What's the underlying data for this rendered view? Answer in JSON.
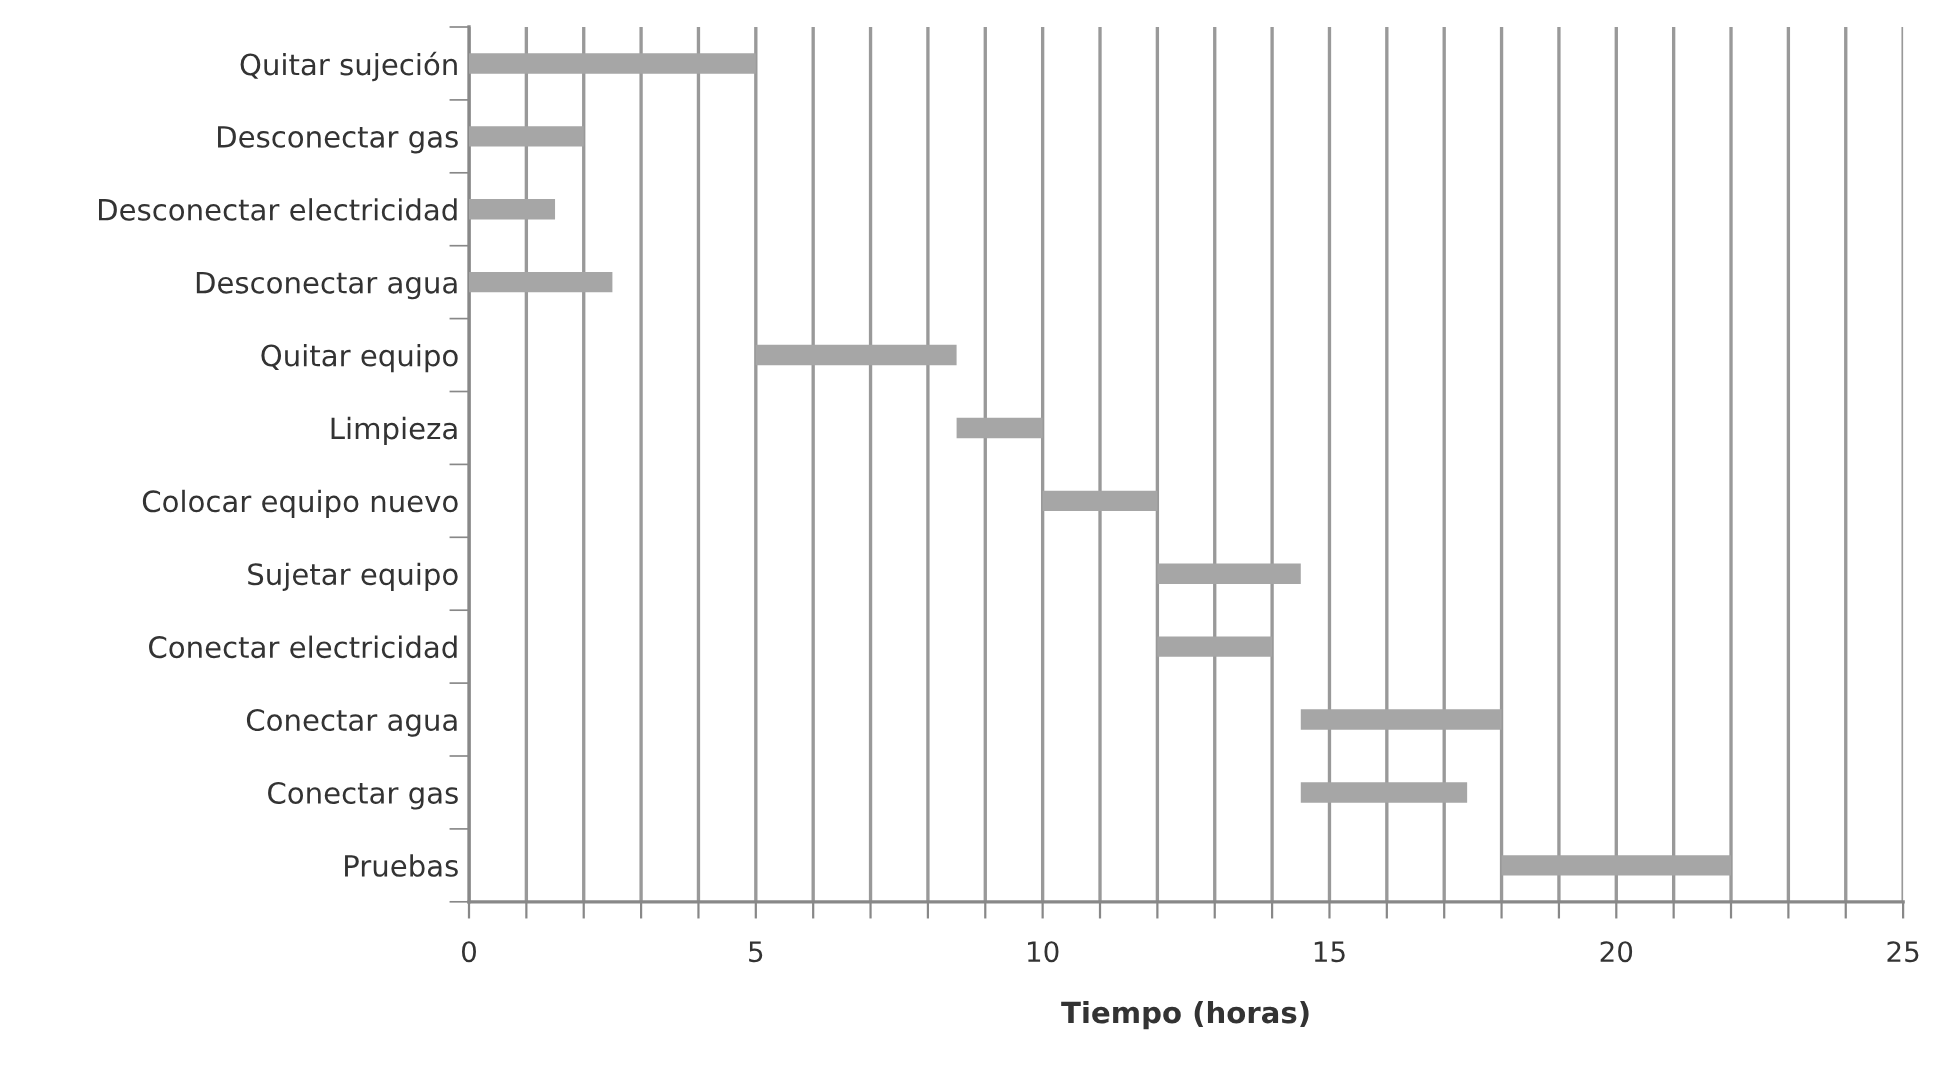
{
  "chart_data": {
    "type": "bar",
    "orientation": "horizontal",
    "xlabel": "Tiempo (horas)",
    "categories": [
      "Quitar sujeción",
      "Desconectar gas",
      "Desconectar electricidad",
      "Desconectar agua",
      "Quitar equipo",
      "Limpieza",
      "Colocar equipo nuevo",
      "Sujetar equipo",
      "Conectar electricidad",
      "Conectar agua",
      "Conectar gas",
      "Pruebas"
    ],
    "base": [
      0,
      0,
      0,
      0,
      5,
      8.5,
      10,
      12,
      12,
      14.5,
      14.5,
      18
    ],
    "values": [
      5,
      2,
      1.5,
      2.5,
      3.5,
      1.5,
      2,
      2.5,
      2,
      3.5,
      2.9,
      4
    ],
    "color": "#a6a6a6",
    "xlim": [
      0,
      25
    ],
    "xticks": [
      0,
      {
        "value": 1,
        "label": null
      },
      {
        "value": 2,
        "label": null
      },
      {
        "value": 3,
        "label": null
      },
      {
        "value": 4,
        "label": null
      },
      5,
      {
        "value": 6,
        "label": null
      },
      {
        "value": 7,
        "label": null
      },
      {
        "value": 8,
        "label": null
      },
      {
        "value": 9,
        "label": null
      },
      10,
      {
        "value": 11,
        "label": null
      },
      {
        "value": 12,
        "label": null
      },
      {
        "value": 13,
        "label": null
      },
      {
        "value": 14,
        "label": null
      },
      15,
      {
        "value": 16,
        "label": null
      },
      {
        "value": 17,
        "label": null
      },
      {
        "value": 18,
        "label": null
      },
      {
        "value": 19,
        "label": null
      },
      20,
      {
        "value": 21,
        "label": null
      },
      {
        "value": 22,
        "label": null
      },
      {
        "value": 23,
        "label": null
      },
      {
        "value": 24,
        "label": null
      },
      25
    ],
    "grid": "x"
  }
}
